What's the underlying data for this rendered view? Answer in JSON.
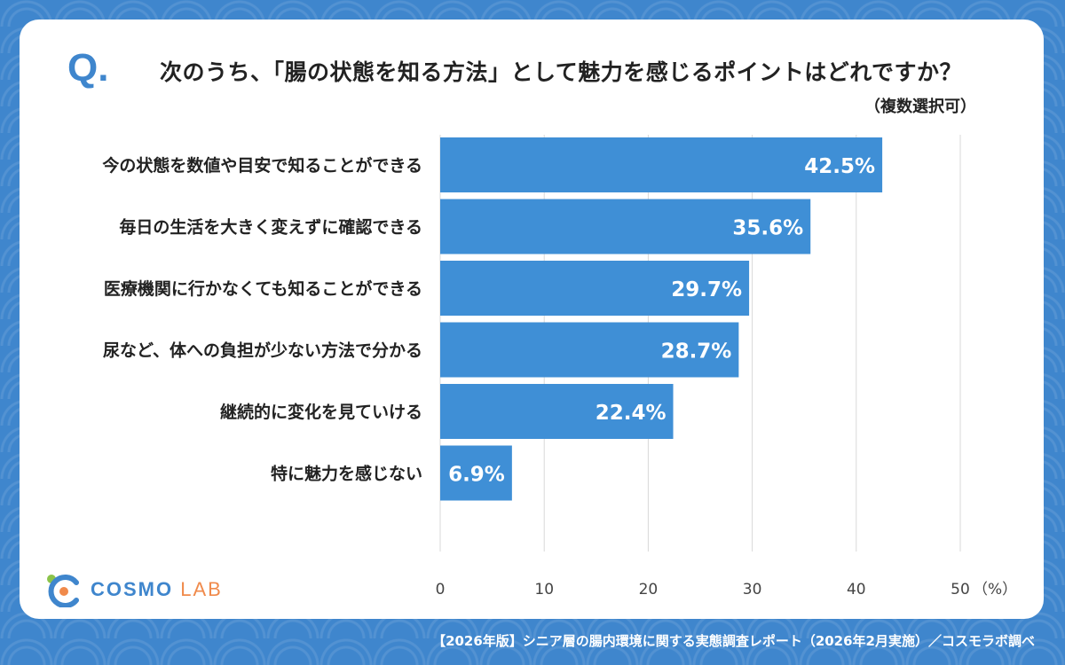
{
  "question": {
    "mark": "Q",
    "title": "次のうち、「腸の状態を知る方法」として魅力を感じるポイントはどれですか？",
    "subtitle": "（複数選択可）"
  },
  "chart_data": {
    "type": "bar",
    "orientation": "horizontal",
    "categories": [
      "今の状態を数値や目安で知ることができる",
      "毎日の生活を大きく変えずに確認できる",
      "医療機関に行かなくても知ることができる",
      "尿など、体への負担が少ない方法で分かる",
      "継続的に変化を見ていける",
      "特に魅力を感じない"
    ],
    "values": [
      42.5,
      35.6,
      29.7,
      28.7,
      22.4,
      6.9
    ],
    "value_labels": [
      "42.5%",
      "35.6%",
      "29.7%",
      "28.7%",
      "22.4%",
      "6.9%"
    ],
    "xlim": [
      0,
      50
    ],
    "xticks": [
      "0",
      "10",
      "20",
      "30",
      "40",
      "50"
    ],
    "unit_label": "（%）",
    "grid": true,
    "bar_color": "#3f8fd6"
  },
  "logo": {
    "brand": "COSMO",
    "suffix": "LAB"
  },
  "footer": "【2026年版】シニア層の腸内環境に関する実態調査レポート（2026年2月実施）／コスモラボ調べ",
  "colors": {
    "background": "#3f86cd",
    "accent": "#3f86cd",
    "logo_orange": "#f08a4b"
  }
}
